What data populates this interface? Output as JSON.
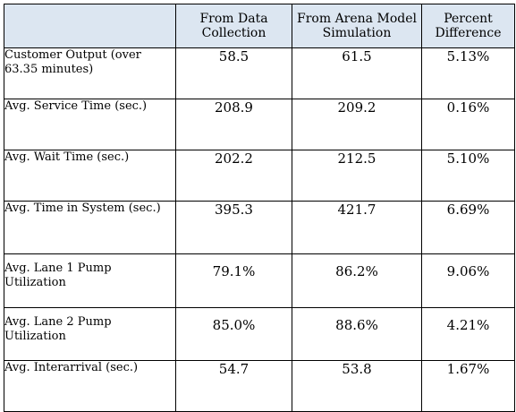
{
  "table": {
    "headers": [
      "",
      "From Data Collection",
      "From Arena Model Simulation",
      "Percent Difference"
    ],
    "rows": [
      {
        "metric": "Customer Output (over 63.35 minutes)",
        "data_collection": "58.5",
        "arena_simulation": "61.5",
        "percent_difference": "5.13%"
      },
      {
        "metric": "Avg. Service Time (sec.)",
        "data_collection": "208.9",
        "arena_simulation": "209.2",
        "percent_difference": "0.16%"
      },
      {
        "metric": "Avg. Wait Time (sec.)",
        "data_collection": "202.2",
        "arena_simulation": "212.5",
        "percent_difference": "5.10%"
      },
      {
        "metric": "Avg. Time in System (sec.)",
        "data_collection": "395.3",
        "arena_simulation": "421.7",
        "percent_difference": "6.69%"
      },
      {
        "metric": "Avg. Lane 1 Pump Utilization",
        "data_collection": "79.1%",
        "arena_simulation": "86.2%",
        "percent_difference": "9.06%"
      },
      {
        "metric": "Avg. Lane 2 Pump Utilization",
        "data_collection": "85.0%",
        "arena_simulation": "88.6%",
        "percent_difference": "4.21%"
      },
      {
        "metric": "Avg. Interarrival (sec.)",
        "data_collection": "54.7",
        "arena_simulation": "53.8",
        "percent_difference": "1.67%"
      }
    ]
  },
  "colors": {
    "header_background": "#dce6f1",
    "border": "#000000",
    "text": "#000000"
  }
}
